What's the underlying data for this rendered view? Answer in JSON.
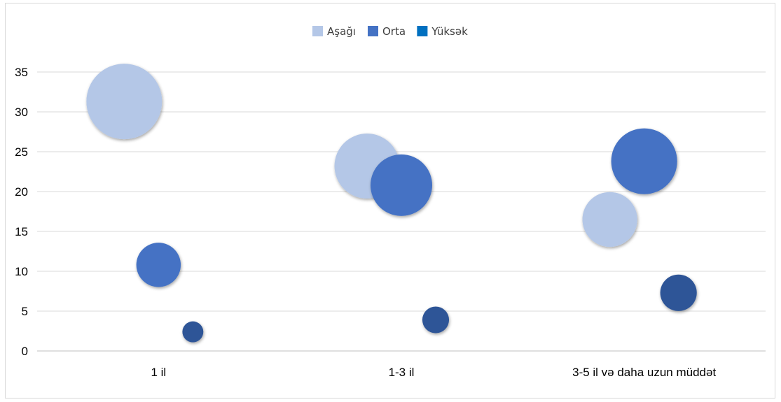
{
  "chart_data": {
    "type": "bubble",
    "categories": [
      "1 il",
      "1-3 il",
      "3-5 il və daha uzun müddət"
    ],
    "ylim": [
      0,
      35
    ],
    "yticks": [
      0,
      5,
      10,
      15,
      20,
      25,
      30,
      35
    ],
    "grid": true,
    "legend_position": "top",
    "series": [
      {
        "name": "Aşağı",
        "color": "#b4c7e7",
        "points": [
          {
            "category_index": 0,
            "offset": -1,
            "y": 31.3,
            "bubble": 31.3
          },
          {
            "category_index": 1,
            "offset": -1,
            "y": 23.2,
            "bubble": 23.2
          },
          {
            "category_index": 2,
            "offset": -1,
            "y": 16.5,
            "bubble": 16.5
          }
        ]
      },
      {
        "name": "Orta",
        "color": "#4472c4",
        "points": [
          {
            "category_index": 0,
            "offset": 0,
            "y": 10.8,
            "bubble": 10.8
          },
          {
            "category_index": 1,
            "offset": 0,
            "y": 20.8,
            "bubble": 20.8
          },
          {
            "category_index": 2,
            "offset": 0,
            "y": 23.8,
            "bubble": 23.8
          }
        ]
      },
      {
        "name": "Yüksək",
        "color": "#2f5597",
        "legend_color": "#0070c0",
        "points": [
          {
            "category_index": 0,
            "offset": 1,
            "y": 2.4,
            "bubble": 2.4
          },
          {
            "category_index": 1,
            "offset": 1,
            "y": 3.9,
            "bubble": 3.9
          },
          {
            "category_index": 2,
            "offset": 1,
            "y": 7.3,
            "bubble": 7.3
          }
        ]
      }
    ]
  }
}
